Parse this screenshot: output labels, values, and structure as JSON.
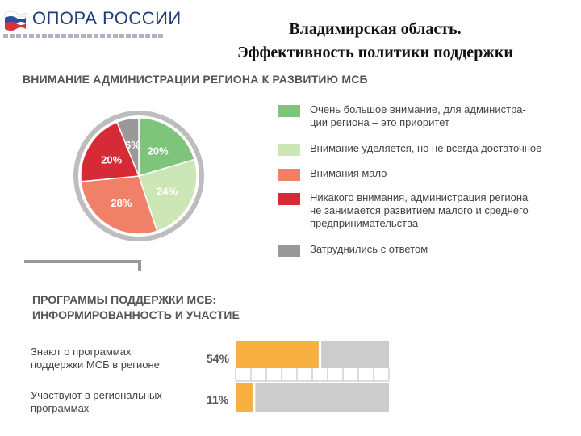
{
  "header": {
    "logo_text": "ОПОРА РОССИИ",
    "title_line1": "Владимирская область.",
    "title_line2": "Эффективность политики поддержки"
  },
  "colors": {
    "green": "#7ec47a",
    "light_green": "#cde6b6",
    "salmon": "#f08068",
    "red": "#d62a36",
    "gray": "#999999",
    "orange": "#f8b040",
    "bar_gray": "#cccccc"
  },
  "section1": {
    "title": "ВНИМАНИЕ АДМИНИСТРАЦИИ РЕГИОНА К РАЗВИТИЮ МСБ"
  },
  "section2": {
    "title_line1": "ПРОГРАММЫ ПОДДЕРЖКИ МСБ:",
    "title_line2": "ИНФОРМИРОВАННОСТЬ И УЧАСТИЕ"
  },
  "legend": [
    {
      "line1": "Очень большое внимание, для администра-",
      "line2": "ции региона – это приоритет",
      "line3": ""
    },
    {
      "line1": "Внимание уделяется, но не всегда достаточное",
      "line2": "",
      "line3": ""
    },
    {
      "line1": "Внимания мало",
      "line2": "",
      "line3": ""
    },
    {
      "line1": "Никакого внимания, администрация региона",
      "line2": "не занимается развитием малого и среднего",
      "line3": "предпринимательства"
    },
    {
      "line1": "Затруднились с ответом",
      "line2": "",
      "line3": ""
    }
  ],
  "chart_data": [
    {
      "type": "pie",
      "title": "ВНИМАНИЕ АДМИНИСТРАЦИИ РЕГИОНА К РАЗВИТИЮ МСБ",
      "categories": [
        "Очень большое внимание, для администрации региона – это приоритет",
        "Внимание уделяется, но не всегда достаточное",
        "Внимания мало",
        "Никакого внимания, администрация региона не занимается развитием малого и среднего предпринимательства",
        "Затруднились с ответом"
      ],
      "values": [
        20,
        24,
        28,
        20,
        6
      ],
      "labels": [
        "20%",
        "24%",
        "28%",
        "20%",
        "6%"
      ],
      "colors": [
        "#7ec47a",
        "#cde6b6",
        "#f08068",
        "#d62a36",
        "#999999"
      ],
      "legend": "right"
    },
    {
      "type": "bar",
      "orientation": "horizontal",
      "title": "ПРОГРАММЫ ПОДДЕРЖКИ МСБ: ИНФОРМИРОВАННОСТЬ И УЧАСТИЕ",
      "categories": [
        "Знают о программах поддержки МСБ в регионе",
        "Участвуют в региональных программах"
      ],
      "category_lines": [
        [
          "Знают о программах",
          "поддержки МСБ в регионе"
        ],
        [
          "Участвуют в региональных",
          "программах"
        ]
      ],
      "values": [
        54,
        11
      ],
      "labels": [
        "54%",
        "11%"
      ],
      "xlim": [
        0,
        100
      ]
    }
  ]
}
